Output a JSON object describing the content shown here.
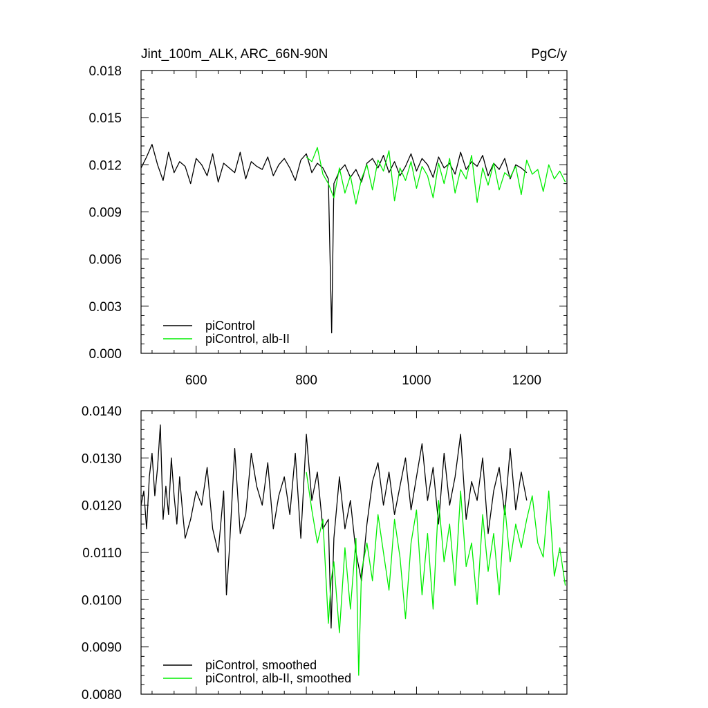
{
  "chart_data": [
    {
      "type": "line",
      "title": "Jint_100m_ALK, ARC_66N-90N",
      "units": "PgC/y",
      "xlabel": "",
      "ylabel": "",
      "xlim": [
        500,
        1273
      ],
      "ylim": [
        0.0,
        0.018
      ],
      "x_ticks": [
        600,
        800,
        1000,
        1200
      ],
      "x_tick_labels": [
        "600",
        "800",
        "1000",
        "1200"
      ],
      "y_ticks": [
        0.0,
        0.003,
        0.006,
        0.009,
        0.012,
        0.015,
        0.018
      ],
      "y_tick_labels": [
        "0.000",
        "0.003",
        "0.006",
        "0.009",
        "0.012",
        "0.015",
        "0.018"
      ],
      "legend_position": "bottom-left",
      "grid": false,
      "series": [
        {
          "name": "piControl",
          "color": "#000000",
          "x": [
            500,
            510,
            520,
            530,
            540,
            550,
            560,
            570,
            580,
            590,
            600,
            610,
            620,
            630,
            640,
            650,
            660,
            670,
            680,
            690,
            700,
            710,
            720,
            730,
            740,
            750,
            760,
            770,
            780,
            790,
            800,
            810,
            820,
            830,
            840,
            846,
            850,
            860,
            870,
            880,
            890,
            900,
            910,
            920,
            930,
            940,
            950,
            960,
            970,
            980,
            990,
            1000,
            1010,
            1020,
            1030,
            1040,
            1050,
            1060,
            1070,
            1080,
            1090,
            1100,
            1110,
            1120,
            1130,
            1140,
            1150,
            1160,
            1170,
            1180,
            1190,
            1200
          ],
          "y": [
            0.0118,
            0.0125,
            0.0133,
            0.012,
            0.011,
            0.0128,
            0.0115,
            0.0122,
            0.0119,
            0.0108,
            0.0124,
            0.012,
            0.0113,
            0.0127,
            0.0109,
            0.0121,
            0.0118,
            0.0115,
            0.0128,
            0.0111,
            0.0122,
            0.0119,
            0.0117,
            0.0125,
            0.0113,
            0.012,
            0.0124,
            0.0118,
            0.011,
            0.0123,
            0.0127,
            0.0115,
            0.0121,
            0.0118,
            0.0111,
            0.0013,
            0.0108,
            0.0116,
            0.012,
            0.0112,
            0.0117,
            0.0109,
            0.0121,
            0.0124,
            0.0118,
            0.0126,
            0.0115,
            0.0122,
            0.0113,
            0.0119,
            0.0127,
            0.0116,
            0.0124,
            0.012,
            0.0112,
            0.0125,
            0.0118,
            0.0121,
            0.0114,
            0.0128,
            0.0117,
            0.0122,
            0.0119,
            0.0126,
            0.0113,
            0.0121,
            0.0117,
            0.0124,
            0.0111,
            0.012,
            0.0118,
            0.0115
          ]
        },
        {
          "name": "piControl, alb-II",
          "color": "#00ee00",
          "x": [
            800,
            810,
            820,
            830,
            840,
            850,
            860,
            870,
            880,
            890,
            900,
            910,
            920,
            930,
            940,
            950,
            960,
            970,
            980,
            990,
            1000,
            1010,
            1020,
            1030,
            1040,
            1050,
            1060,
            1070,
            1080,
            1090,
            1100,
            1110,
            1120,
            1130,
            1140,
            1150,
            1160,
            1170,
            1180,
            1190,
            1200,
            1210,
            1220,
            1230,
            1240,
            1250,
            1260,
            1270
          ],
          "y": [
            0.0125,
            0.0122,
            0.0131,
            0.0114,
            0.0108,
            0.0099,
            0.0118,
            0.0102,
            0.0113,
            0.0095,
            0.0111,
            0.012,
            0.0104,
            0.0123,
            0.0116,
            0.0129,
            0.0097,
            0.0118,
            0.011,
            0.0122,
            0.0105,
            0.0119,
            0.0113,
            0.0099,
            0.0121,
            0.0108,
            0.0124,
            0.0102,
            0.0117,
            0.0111,
            0.0126,
            0.0096,
            0.0118,
            0.0107,
            0.0121,
            0.0104,
            0.0115,
            0.0112,
            0.0119,
            0.0101,
            0.0123,
            0.0114,
            0.0117,
            0.0103,
            0.012,
            0.0111,
            0.0116,
            0.0109
          ]
        }
      ]
    },
    {
      "type": "line",
      "title": "",
      "xlabel": "",
      "ylabel": "",
      "xlim": [
        500,
        1273
      ],
      "ylim": [
        0.008,
        0.014
      ],
      "x_ticks": [
        600,
        800,
        1000,
        1200
      ],
      "y_ticks": [
        0.008,
        0.009,
        0.01,
        0.011,
        0.012,
        0.013,
        0.014
      ],
      "y_tick_labels": [
        "0.0080",
        "0.0090",
        "0.0100",
        "0.0110",
        "0.0120",
        "0.0130",
        "0.0140"
      ],
      "legend_position": "bottom-left",
      "grid": false,
      "series": [
        {
          "name": "piControl, smoothed",
          "color": "#000000",
          "x": [
            500,
            505,
            510,
            515,
            520,
            525,
            530,
            535,
            540,
            545,
            550,
            555,
            560,
            565,
            570,
            575,
            580,
            590,
            600,
            610,
            620,
            630,
            640,
            650,
            655,
            660,
            670,
            680,
            690,
            700,
            710,
            720,
            730,
            740,
            750,
            760,
            770,
            780,
            790,
            800,
            810,
            820,
            830,
            840,
            845,
            850,
            860,
            870,
            880,
            890,
            900,
            910,
            920,
            930,
            940,
            950,
            960,
            970,
            980,
            990,
            1000,
            1010,
            1020,
            1030,
            1040,
            1050,
            1060,
            1070,
            1080,
            1090,
            1100,
            1110,
            1120,
            1130,
            1140,
            1150,
            1160,
            1170,
            1180,
            1190,
            1200
          ],
          "y": [
            0.012,
            0.0123,
            0.0115,
            0.0126,
            0.0131,
            0.0122,
            0.0128,
            0.0137,
            0.0117,
            0.0124,
            0.0118,
            0.013,
            0.0122,
            0.0116,
            0.0126,
            0.0119,
            0.0113,
            0.0117,
            0.0123,
            0.012,
            0.0128,
            0.0115,
            0.011,
            0.0123,
            0.0101,
            0.011,
            0.0132,
            0.0114,
            0.0118,
            0.0131,
            0.0124,
            0.012,
            0.0129,
            0.0115,
            0.0122,
            0.0126,
            0.0118,
            0.0131,
            0.0113,
            0.0135,
            0.0121,
            0.0127,
            0.0115,
            0.0117,
            0.0094,
            0.0113,
            0.0126,
            0.0115,
            0.0121,
            0.011,
            0.0104,
            0.0116,
            0.0125,
            0.0129,
            0.012,
            0.0127,
            0.0118,
            0.0124,
            0.013,
            0.0119,
            0.0126,
            0.0133,
            0.0121,
            0.0128,
            0.0116,
            0.0131,
            0.012,
            0.0126,
            0.0135,
            0.0117,
            0.0125,
            0.0121,
            0.013,
            0.0114,
            0.0123,
            0.0128,
            0.0118,
            0.0132,
            0.0119,
            0.0127,
            0.0121
          ]
        },
        {
          "name": "piControl, alb-II, smoothed",
          "color": "#00ee00",
          "x": [
            800,
            810,
            820,
            830,
            840,
            845,
            850,
            860,
            870,
            880,
            890,
            895,
            900,
            910,
            920,
            930,
            940,
            950,
            960,
            970,
            980,
            990,
            1000,
            1010,
            1020,
            1030,
            1040,
            1050,
            1060,
            1070,
            1080,
            1090,
            1100,
            1110,
            1120,
            1130,
            1140,
            1150,
            1160,
            1170,
            1180,
            1190,
            1200,
            1210,
            1220,
            1230,
            1240,
            1250,
            1260,
            1270
          ],
          "y": [
            0.0127,
            0.0119,
            0.0112,
            0.0117,
            0.0095,
            0.0104,
            0.0108,
            0.0093,
            0.0111,
            0.0098,
            0.0113,
            0.0084,
            0.0106,
            0.0112,
            0.0104,
            0.0118,
            0.011,
            0.0102,
            0.0117,
            0.0109,
            0.0096,
            0.0112,
            0.0119,
            0.0101,
            0.0114,
            0.0098,
            0.0121,
            0.0108,
            0.0116,
            0.0103,
            0.0123,
            0.0107,
            0.0112,
            0.0099,
            0.0118,
            0.0106,
            0.0114,
            0.0101,
            0.012,
            0.0108,
            0.0116,
            0.0111,
            0.0117,
            0.0122,
            0.0112,
            0.0109,
            0.0123,
            0.0105,
            0.0111,
            0.0103
          ]
        }
      ]
    }
  ]
}
